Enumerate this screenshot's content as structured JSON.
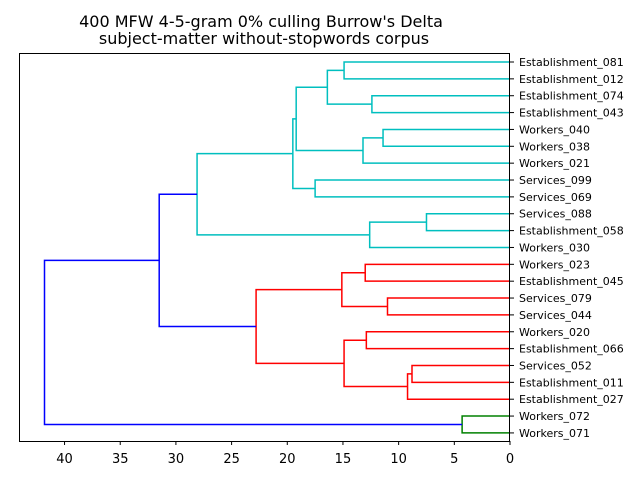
{
  "chart_data": {
    "type": "dendrogram",
    "title_line1": "400 MFW 4-5-gram 0% culling Burrow's Delta",
    "title_line2": "subject-matter without-stopwords corpus",
    "orientation": "left",
    "xlim": [
      44,
      0
    ],
    "xticks": [
      40,
      35,
      30,
      25,
      20,
      15,
      10,
      5,
      0
    ],
    "leaves": [
      "Establishment_081",
      "Establishment_012",
      "Establishment_074",
      "Establishment_043",
      "Workers_040",
      "Workers_038",
      "Workers_021",
      "Services_099",
      "Services_069",
      "Services_088",
      "Establishment_058",
      "Workers_030",
      "Workers_023",
      "Establishment_045",
      "Services_079",
      "Services_044",
      "Workers_020",
      "Establishment_066",
      "Services_052",
      "Establishment_011",
      "Establishment_027",
      "Workers_072",
      "Workers_071"
    ],
    "colors": {
      "cyan": "#00bfbf",
      "red": "#ff0000",
      "green": "#008000",
      "blue": "#0000ff"
    },
    "merges": [
      {
        "id": "c1",
        "children": [
          0,
          1
        ],
        "height": 14.9,
        "color": "cyan"
      },
      {
        "id": "c2",
        "children": [
          2,
          3
        ],
        "height": 12.4,
        "color": "cyan"
      },
      {
        "id": "c3",
        "children": [
          "c1",
          "c2"
        ],
        "height": 16.4,
        "color": "cyan"
      },
      {
        "id": "c4",
        "children": [
          4,
          5
        ],
        "height": 11.4,
        "color": "cyan"
      },
      {
        "id": "c5",
        "children": [
          "c4",
          6
        ],
        "height": 13.2,
        "color": "cyan"
      },
      {
        "id": "c6",
        "children": [
          "c3",
          "c5"
        ],
        "height": 19.2,
        "color": "cyan"
      },
      {
        "id": "c7",
        "children": [
          7,
          8
        ],
        "height": 17.5,
        "color": "cyan"
      },
      {
        "id": "c8",
        "children": [
          "c6",
          "c7"
        ],
        "height": 19.5,
        "color": "cyan"
      },
      {
        "id": "c9",
        "children": [
          9,
          10
        ],
        "height": 7.5,
        "color": "cyan"
      },
      {
        "id": "c10",
        "children": [
          "c9",
          11
        ],
        "height": 12.6,
        "color": "cyan"
      },
      {
        "id": "c11",
        "children": [
          "c8",
          "c10"
        ],
        "height": 28.1,
        "color": "cyan"
      },
      {
        "id": "r1",
        "children": [
          12,
          13
        ],
        "height": 13.0,
        "color": "red"
      },
      {
        "id": "r2",
        "children": [
          14,
          15
        ],
        "height": 11.0,
        "color": "red"
      },
      {
        "id": "r3",
        "children": [
          "r1",
          "r2"
        ],
        "height": 15.1,
        "color": "red"
      },
      {
        "id": "r4",
        "children": [
          16,
          17
        ],
        "height": 12.9,
        "color": "red"
      },
      {
        "id": "r5",
        "children": [
          18,
          19
        ],
        "height": 8.8,
        "color": "red"
      },
      {
        "id": "r6",
        "children": [
          "r5",
          20
        ],
        "height": 9.2,
        "color": "red"
      },
      {
        "id": "r7",
        "children": [
          "r4",
          "r6"
        ],
        "height": 14.9,
        "color": "red"
      },
      {
        "id": "r8",
        "children": [
          "r3",
          "r7"
        ],
        "height": 22.8,
        "color": "red"
      },
      {
        "id": "b1",
        "children": [
          "c11",
          "r8"
        ],
        "height": 31.5,
        "color": "blue"
      },
      {
        "id": "g1",
        "children": [
          21,
          22
        ],
        "height": 4.3,
        "color": "green"
      },
      {
        "id": "b2",
        "children": [
          "b1",
          "g1"
        ],
        "height": 41.8,
        "color": "blue"
      }
    ]
  }
}
